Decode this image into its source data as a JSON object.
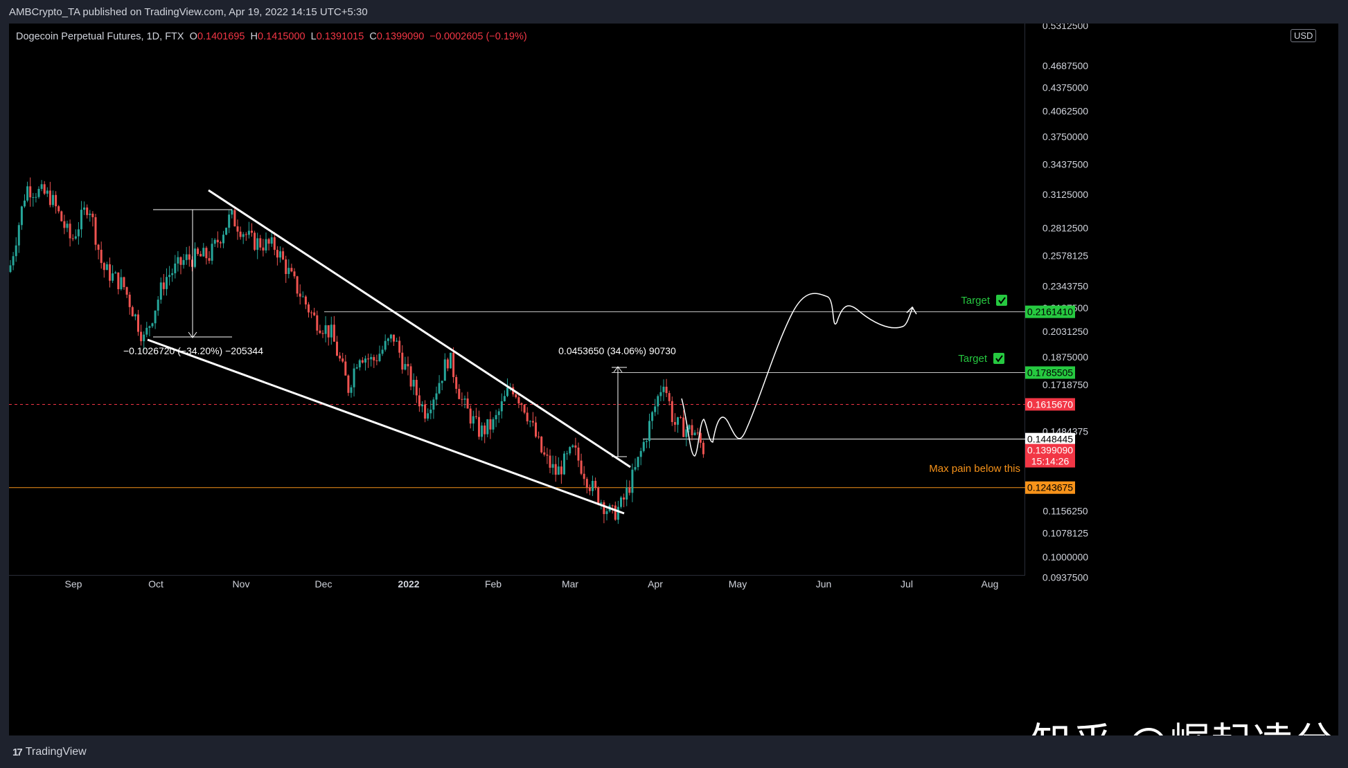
{
  "header": {
    "published": "AMBCrypto_TA published on TradingView.com, Apr 19, 2022 14:15 UTC+5:30"
  },
  "legend": {
    "symbol": "Dogecoin Perpetual Futures, 1D, FTX",
    "o_label": "O",
    "o_value": "0.1401695",
    "h_label": "H",
    "h_value": "0.1415000",
    "l_label": "L",
    "l_value": "0.1391015",
    "c_label": "C",
    "c_value": "0.1399090",
    "change": "−0.0002605 (−0.19%)"
  },
  "currency": "USD",
  "footer": {
    "brand": "TradingView"
  },
  "watermark": "知乎 @崛起凌兮",
  "colors": {
    "up": "#26a69a",
    "down": "#ef5350",
    "target": "#26c940",
    "red_level": "#f23645",
    "orange": "#f7931a",
    "white": "#ffffff"
  },
  "chart_data": {
    "type": "candlestick",
    "title": "Dogecoin Perpetual Futures, 1D, FTX",
    "y_scale": "log",
    "ylim": [
      0.0945,
      0.535
    ],
    "x_ticks": [
      "Sep",
      "Oct",
      "Nov",
      "Dec",
      "2022",
      "Feb",
      "Mar",
      "Apr",
      "May",
      "Jun",
      "Jul",
      "Aug"
    ],
    "y_ticks": [
      "0.5312500",
      "0.4687500",
      "0.4375000",
      "0.4062500",
      "0.3750000",
      "0.3437500",
      "0.3125000",
      "0.2812500",
      "0.2578125",
      "0.2343750",
      "0.2187500",
      "0.2031250",
      "0.1875000",
      "0.1718750",
      "0.1484375",
      "0.1156250",
      "0.1078125",
      "0.1000000",
      "0.0937500"
    ],
    "price_labels": [
      {
        "value": "0.2161410",
        "color": "#26c940",
        "text_color": "#000000"
      },
      {
        "value": "0.1785505",
        "color": "#26c940",
        "text_color": "#000000"
      },
      {
        "value": "0.1615670",
        "color": "#f23645",
        "text_color": "#ffffff"
      },
      {
        "value": "0.1448445",
        "color": "#ffffff",
        "text_color": "#000000"
      },
      {
        "value": "0.1399090",
        "color": "#f23645",
        "text_color": "#ffffff",
        "countdown": "15:14:26"
      },
      {
        "value": "0.1243675",
        "color": "#f7931a",
        "text_color": "#000000"
      }
    ],
    "annotations": [
      {
        "text": "Target",
        "level": 0.216141,
        "color": "#26c940"
      },
      {
        "text": "Target",
        "level": 0.1785505,
        "color": "#26c940"
      },
      {
        "text": "Max pain below this",
        "level": 0.1243675,
        "color": "#f7931a"
      },
      {
        "text": "−0.1026720 (−34.20%) −205344",
        "type": "measure"
      },
      {
        "text": "0.0453650 (34.06%) 90730",
        "type": "measure"
      }
    ],
    "levels": [
      {
        "value": 0.216141,
        "style": "solid",
        "color": "#c8c8c8"
      },
      {
        "value": 0.1785505,
        "style": "solid",
        "color": "#c8c8c8"
      },
      {
        "value": 0.161567,
        "style": "dashed",
        "color": "#f23645"
      },
      {
        "value": 0.1448445,
        "style": "solid",
        "color": "#ffffff"
      },
      {
        "value": 0.1243675,
        "style": "solid",
        "color": "#f7931a"
      }
    ]
  }
}
